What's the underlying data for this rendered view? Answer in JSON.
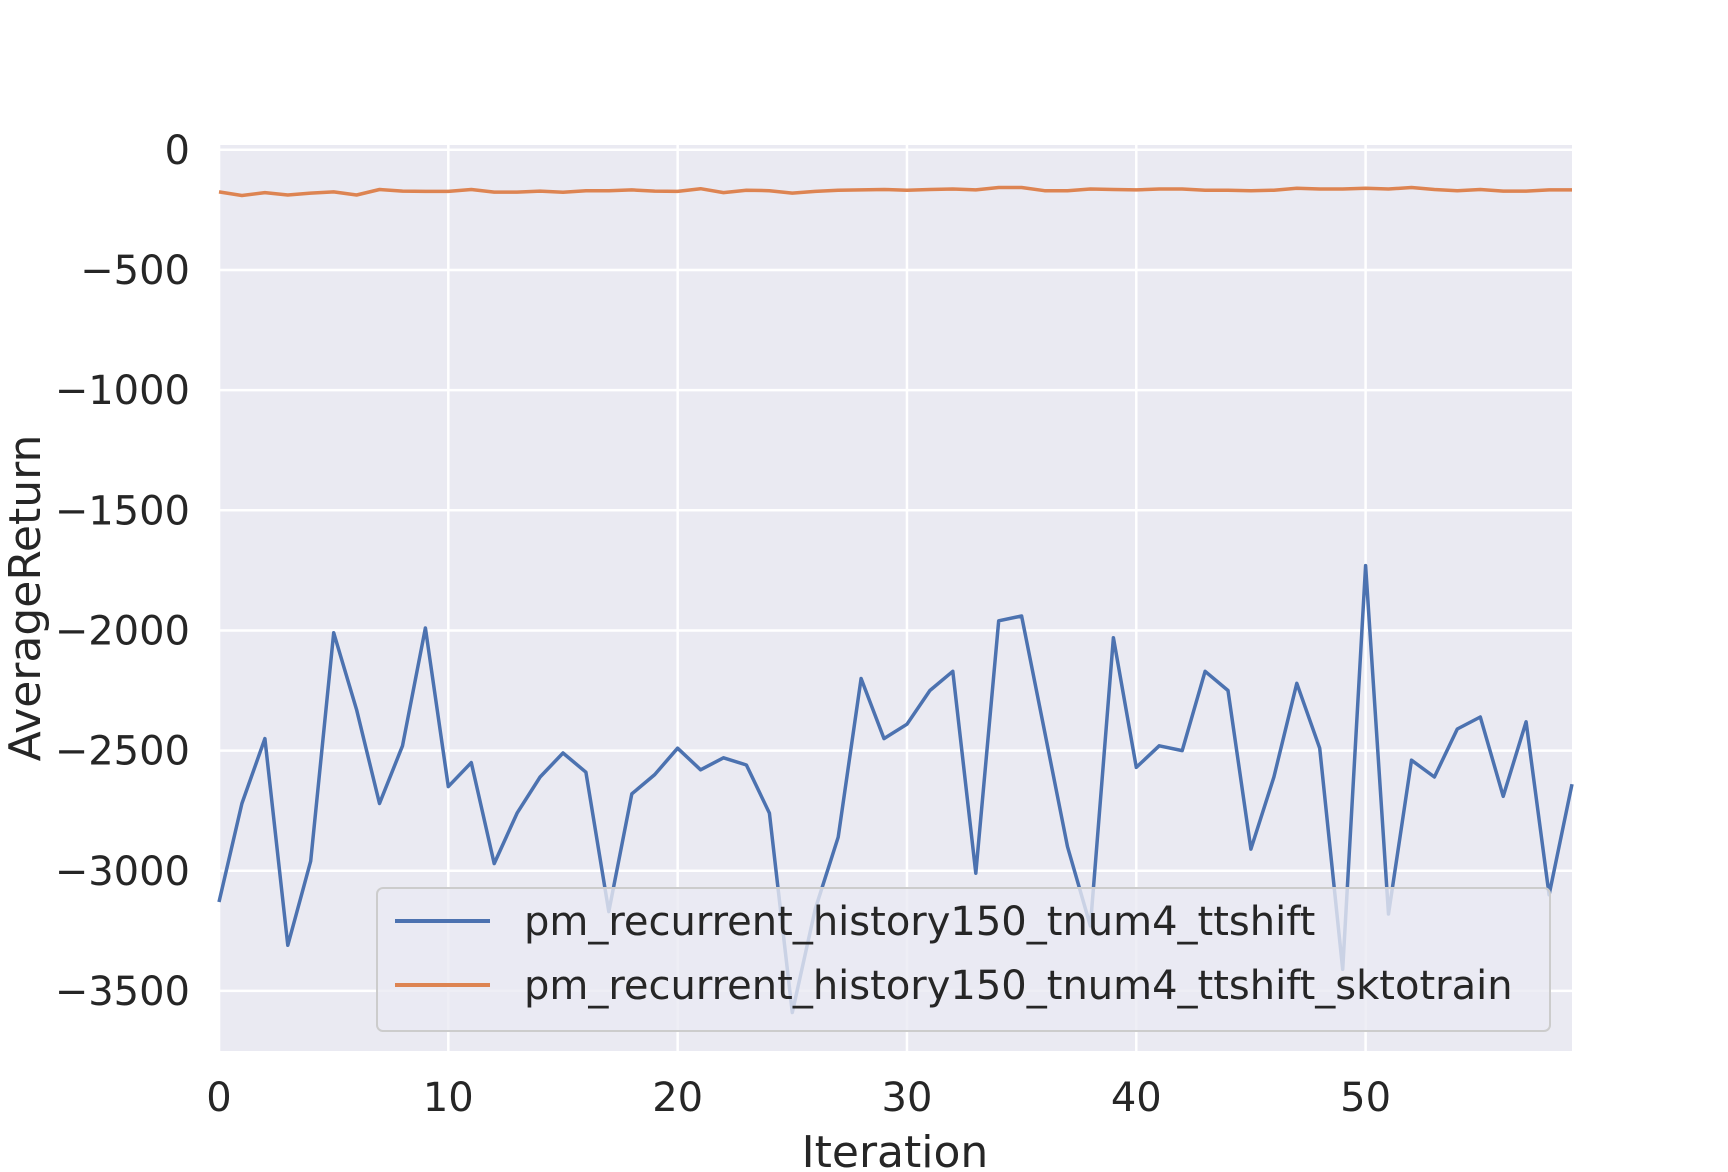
{
  "chart_data": {
    "type": "line",
    "title": "",
    "xlabel": "Iteration",
    "ylabel": "AverageReturn",
    "xlim": [
      0,
      59
    ],
    "ylim": [
      -3750,
      20
    ],
    "xticks": [
      0,
      10,
      20,
      30,
      40,
      50
    ],
    "xtick_labels": [
      "0",
      "10",
      "20",
      "30",
      "40",
      "50"
    ],
    "yticks": [
      0,
      -500,
      -1000,
      -1500,
      -2000,
      -2500,
      -3000,
      -3500
    ],
    "ytick_labels": [
      "0",
      "−500",
      "−1000",
      "−1500",
      "−2000",
      "−2500",
      "−3000",
      "−3500"
    ],
    "grid": true,
    "legend_position": "lower-right",
    "background": "#eaeaf2",
    "grid_color": "#ffffff",
    "x": [
      0,
      1,
      2,
      3,
      4,
      5,
      6,
      7,
      8,
      9,
      10,
      11,
      12,
      13,
      14,
      15,
      16,
      17,
      18,
      19,
      20,
      21,
      22,
      23,
      24,
      25,
      26,
      27,
      28,
      29,
      30,
      31,
      32,
      33,
      34,
      35,
      36,
      37,
      38,
      39,
      40,
      41,
      42,
      43,
      44,
      45,
      46,
      47,
      48,
      49,
      50,
      51,
      52,
      53,
      54,
      55,
      56,
      57,
      58,
      59
    ],
    "series": [
      {
        "name": "pm_recurrent_history150_tnum4_ttshift",
        "color": "#4c72b0",
        "values": [
          -3130,
          -2720,
          -2450,
          -3310,
          -2960,
          -2010,
          -2330,
          -2720,
          -2480,
          -1990,
          -2650,
          -2550,
          -2970,
          -2760,
          -2610,
          -2510,
          -2590,
          -3170,
          -2680,
          -2600,
          -2490,
          -2580,
          -2530,
          -2560,
          -2760,
          -3590,
          -3160,
          -2860,
          -2200,
          -2450,
          -2390,
          -2250,
          -2170,
          -3010,
          -1960,
          -1940,
          -2420,
          -2900,
          -3230,
          -2030,
          -2570,
          -2480,
          -2500,
          -2170,
          -2250,
          -2910,
          -2610,
          -2220,
          -2490,
          -3410,
          -1730,
          -3180,
          -2540,
          -2610,
          -2410,
          -2360,
          -2690,
          -2380,
          -3100,
          -2640
        ]
      },
      {
        "name": "pm_recurrent_history150_tnum4_ttshift_sktotrain",
        "color": "#dd8452",
        "values": [
          -175,
          -190,
          -178,
          -188,
          -180,
          -175,
          -188,
          -165,
          -172,
          -173,
          -173,
          -165,
          -176,
          -176,
          -172,
          -177,
          -170,
          -170,
          -167,
          -172,
          -173,
          -162,
          -178,
          -168,
          -170,
          -180,
          -173,
          -168,
          -167,
          -165,
          -168,
          -165,
          -163,
          -167,
          -157,
          -157,
          -170,
          -170,
          -163,
          -165,
          -167,
          -163,
          -163,
          -168,
          -168,
          -170,
          -168,
          -160,
          -163,
          -163,
          -160,
          -163,
          -157,
          -165,
          -170,
          -165,
          -172,
          -172,
          -167,
          -167
        ]
      }
    ]
  }
}
